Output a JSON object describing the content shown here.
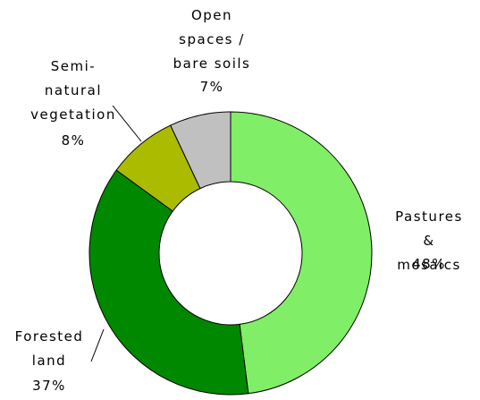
{
  "chart_data": {
    "type": "donut",
    "categories": [
      "Pastures &\nmosaics",
      "Forested\nland",
      "Semi-\nnatural\nvegetation",
      "Open\nspaces /\nbare soils"
    ],
    "values": [
      48,
      37,
      8,
      7
    ],
    "value_labels": [
      "48%",
      "37%",
      "8%",
      "7%"
    ],
    "colors": [
      "#80ee66",
      "#008800",
      "#aabb00",
      "#c0c0c0"
    ]
  }
}
